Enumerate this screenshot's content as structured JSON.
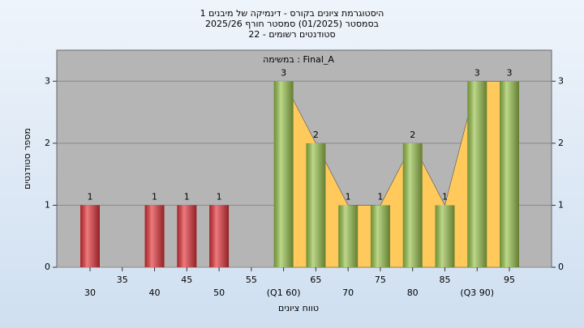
{
  "chart_data": {
    "type": "bar",
    "title": [
      "היסטוגרמת ציונים בקורס - דינמיקה של מיבנים 1",
      "בסמסטר  (01/2025)  סמסטר חורף 2025/26",
      "סטודנטים רשומים - 22"
    ],
    "annotation": "במשימה : Final_A",
    "x_label": "טווח ציונים",
    "y_label": "מספר סטודנטים",
    "categories": [
      "30",
      "35",
      "40",
      "45",
      "50",
      "55",
      "(Q1 60)",
      "65",
      "70",
      "75",
      "80",
      "85",
      "(Q3 90)",
      "95"
    ],
    "values": [
      1,
      0,
      1,
      1,
      1,
      0,
      3,
      2,
      1,
      1,
      2,
      1,
      3,
      3
    ],
    "colors": [
      "#e23238",
      "#e23238",
      "#e23238",
      "#e23238",
      "#e23238",
      "#e23238",
      "#98c24a",
      "#98c24a",
      "#98c24a",
      "#98c24a",
      "#98c24a",
      "#98c24a",
      "#98c24a",
      "#98c24a"
    ],
    "area_color": "#ffc95c",
    "ylim": [
      0,
      3.5
    ],
    "yticks": [
      0,
      1,
      2,
      3
    ],
    "grid": true
  }
}
